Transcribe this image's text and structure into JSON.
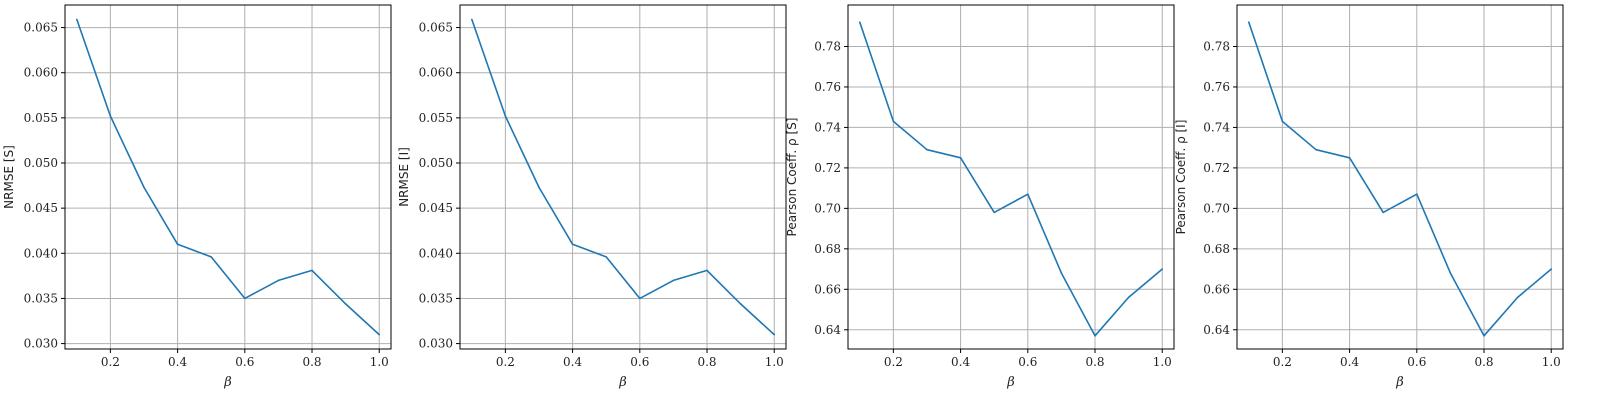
{
  "chart_data": [
    {
      "type": "line",
      "xlabel": "β",
      "ylabel": "NRMSE [S]",
      "xlim": [
        0.065,
        1.035
      ],
      "ylim": [
        0.0294,
        0.0675
      ],
      "xticks": [
        "0.2",
        "0.4",
        "0.6",
        "0.8",
        "1.0"
      ],
      "yticks": [
        "0.030",
        "0.035",
        "0.040",
        "0.045",
        "0.050",
        "0.055",
        "0.060",
        "0.065"
      ],
      "grid": true,
      "color": "#1f77b4",
      "x": [
        0.1,
        0.2,
        0.3,
        0.4,
        0.5,
        0.6,
        0.7,
        0.8,
        0.9,
        1.0
      ],
      "y": [
        0.0659,
        0.0552,
        0.0473,
        0.041,
        0.0396,
        0.035,
        0.037,
        0.0381,
        0.0344,
        0.031
      ]
    },
    {
      "type": "line",
      "xlabel": "β",
      "ylabel": "NRMSE [I]",
      "xlim": [
        0.065,
        1.035
      ],
      "ylim": [
        0.0294,
        0.0675
      ],
      "xticks": [
        "0.2",
        "0.4",
        "0.6",
        "0.8",
        "1.0"
      ],
      "yticks": [
        "0.030",
        "0.035",
        "0.040",
        "0.045",
        "0.050",
        "0.055",
        "0.060",
        "0.065"
      ],
      "grid": true,
      "color": "#1f77b4",
      "x": [
        0.1,
        0.2,
        0.3,
        0.4,
        0.5,
        0.6,
        0.7,
        0.8,
        0.9,
        1.0
      ],
      "y": [
        0.0659,
        0.0552,
        0.0473,
        0.041,
        0.0396,
        0.035,
        0.037,
        0.0381,
        0.0344,
        0.031
      ]
    },
    {
      "type": "line",
      "xlabel": "β",
      "ylabel": "Pearson Coeff.  ρ [S]",
      "xlim": [
        0.065,
        1.035
      ],
      "ylim": [
        0.6305,
        0.8005
      ],
      "xticks": [
        "0.2",
        "0.4",
        "0.6",
        "0.8",
        "1.0"
      ],
      "yticks": [
        "0.64",
        "0.66",
        "0.68",
        "0.70",
        "0.72",
        "0.74",
        "0.76",
        "0.78"
      ],
      "grid": true,
      "color": "#1f77b4",
      "x": [
        0.1,
        0.2,
        0.3,
        0.4,
        0.5,
        0.6,
        0.7,
        0.8,
        0.9,
        1.0
      ],
      "y": [
        0.792,
        0.743,
        0.729,
        0.725,
        0.698,
        0.707,
        0.668,
        0.637,
        0.656,
        0.67
      ]
    },
    {
      "type": "line",
      "xlabel": "β",
      "ylabel": "Pearson Coeff.  ρ [I]",
      "xlim": [
        0.065,
        1.035
      ],
      "ylim": [
        0.6305,
        0.8005
      ],
      "xticks": [
        "0.2",
        "0.4",
        "0.6",
        "0.8",
        "1.0"
      ],
      "yticks": [
        "0.64",
        "0.66",
        "0.68",
        "0.70",
        "0.72",
        "0.74",
        "0.76",
        "0.78"
      ],
      "grid": true,
      "color": "#1f77b4",
      "x": [
        0.1,
        0.2,
        0.3,
        0.4,
        0.5,
        0.6,
        0.7,
        0.8,
        0.9,
        1.0
      ],
      "y": [
        0.792,
        0.743,
        0.729,
        0.725,
        0.698,
        0.707,
        0.668,
        0.637,
        0.656,
        0.67
      ]
    }
  ]
}
